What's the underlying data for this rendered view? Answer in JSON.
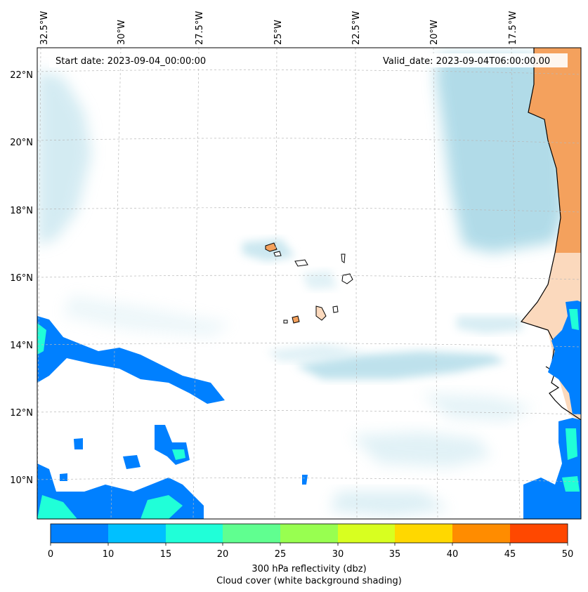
{
  "map": {
    "start_date": "Start date: 2023-09-04_00:00:00",
    "valid_date": "Valid_date: 2023-09-04T06:00:00.00",
    "lon_ticks": [
      "32.5°W",
      "30°W",
      "27.5°W",
      "25°W",
      "22.5°W",
      "20°W",
      "17.5°W"
    ],
    "lat_ticks": [
      "22°N",
      "20°N",
      "18°N",
      "16°N",
      "14°N",
      "12°N",
      "10°N"
    ],
    "gridlines": true,
    "colors": {
      "land": "#f4a15d",
      "land_light": "#fbd9bd",
      "cloud": "#a9d8e6",
      "coastline": "#000000"
    }
  },
  "colorbar": {
    "ticks": [
      "0",
      "10",
      "15",
      "20",
      "25",
      "30",
      "35",
      "40",
      "45",
      "50"
    ],
    "colors": [
      "#0080ff",
      "#00c0ff",
      "#20ffd8",
      "#60ff90",
      "#98ff50",
      "#d8ff20",
      "#ffd800",
      "#ff8c00",
      "#ff4800"
    ],
    "label_line1": "300 hPa reflectivity (dbz)",
    "label_line2": "Cloud cover (white background shading)"
  }
}
